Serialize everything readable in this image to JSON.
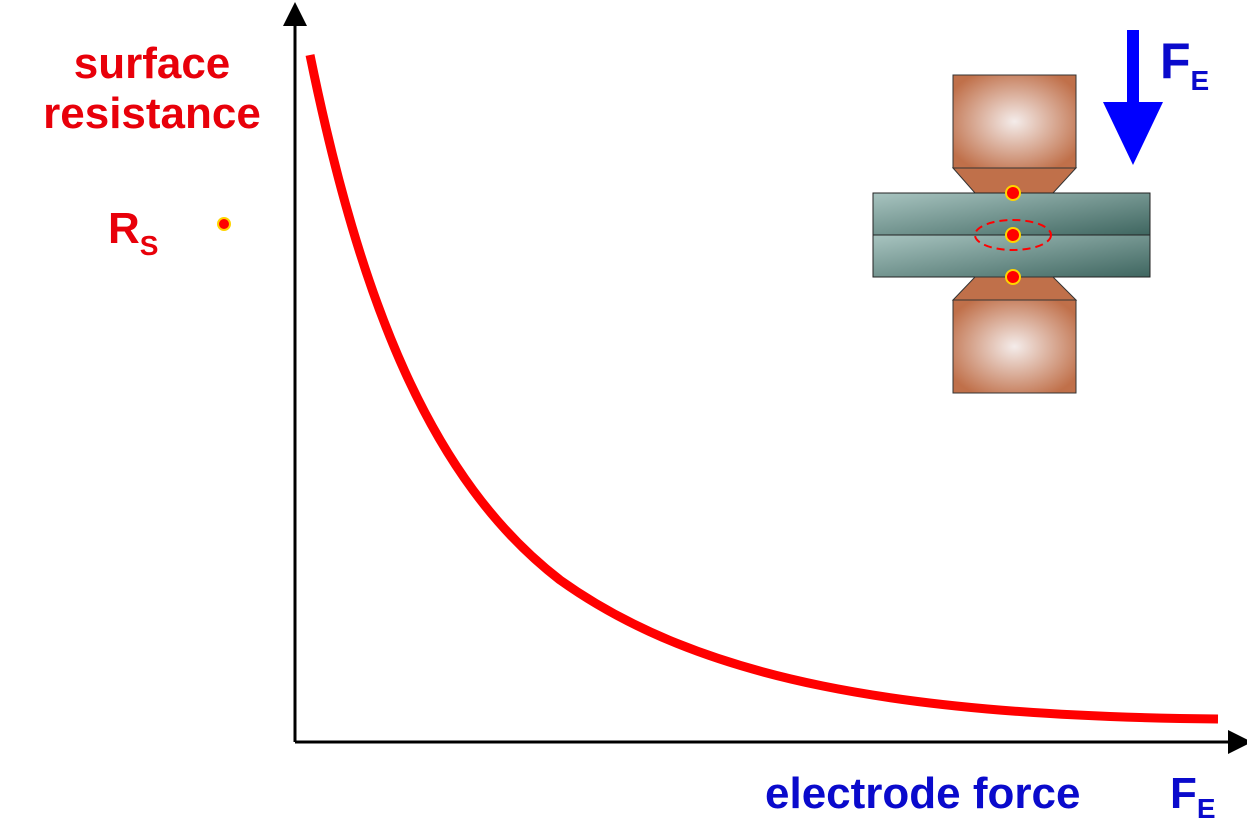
{
  "y_axis_label": [
    "surface",
    "resistance"
  ],
  "resistance_label": {
    "symbol": "R",
    "subscript": "S"
  },
  "x_axis_label": {
    "text": "electrode force",
    "symbol": "F",
    "subscript": "E"
  },
  "force_label": {
    "symbol": "F",
    "subscript": "E"
  }
}
